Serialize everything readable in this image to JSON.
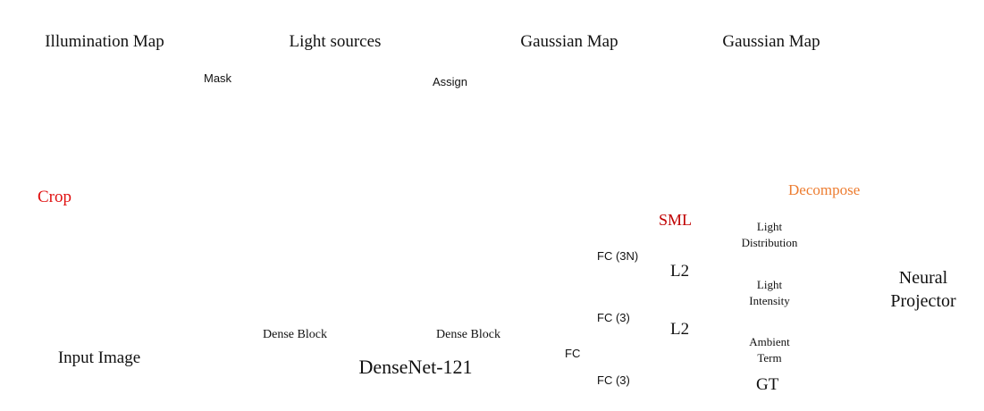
{
  "top_row": {
    "captions": [
      "Illumination Map",
      "Light sources",
      "Gaussian Map",
      "Gaussian Map"
    ],
    "arrow_labels": [
      "Mask",
      "Assign"
    ]
  },
  "pipeline": {
    "crop_label": "Crop",
    "decompose_label": "Decompose",
    "input_caption": "Input Image",
    "dense_block_label": "Dense Block",
    "network_label": "DenseNet-121",
    "fc_main": "FC",
    "fc_heads": [
      "FC (3N)",
      "FC (3)",
      "FC (3)"
    ],
    "loss_labels": [
      "SML",
      "L2",
      "L2"
    ],
    "gt_boxes": [
      [
        "Light",
        "Distribution"
      ],
      [
        "Light",
        "Intensity"
      ],
      [
        "Ambient",
        "Term"
      ]
    ],
    "gt_label": "GT",
    "projector_lines": [
      "Neural",
      "Projector"
    ]
  },
  "colors": {
    "arrow_dark": "#44546a",
    "red": "#e01010",
    "orange": "#ed7d31",
    "net_fill": "#bdd7ee",
    "gt_fill": "#f8cbad",
    "fc_blue": "#5b9bd5"
  }
}
